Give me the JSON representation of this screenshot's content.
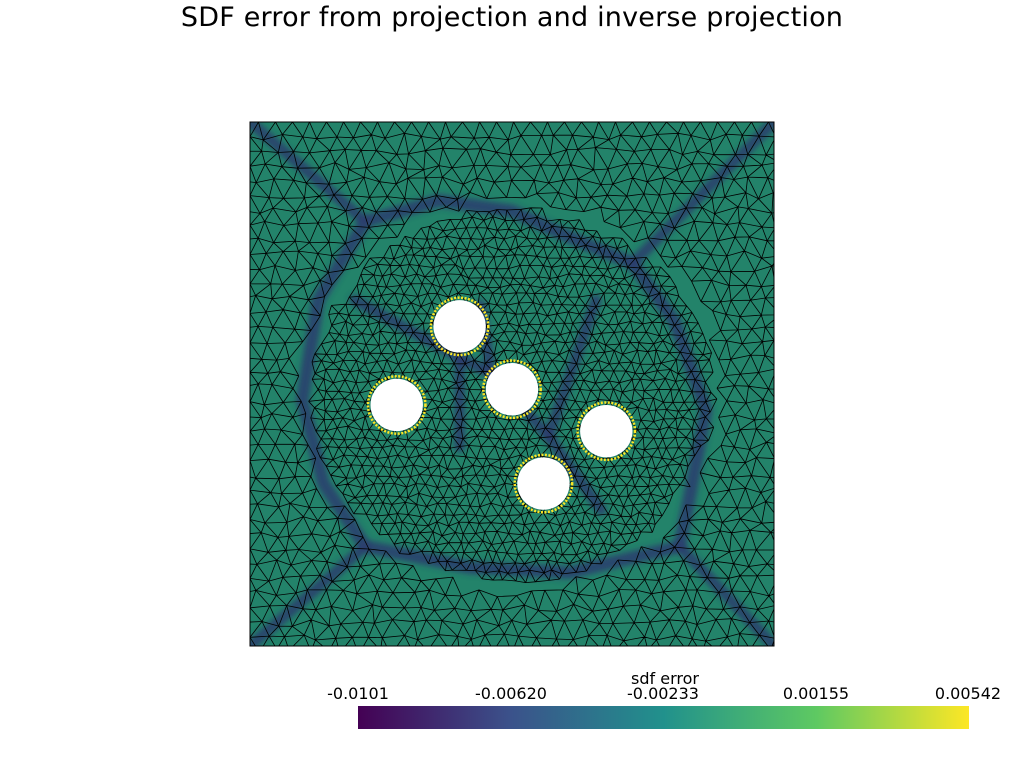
{
  "title": "SDF error from projection and inverse projection",
  "chart_data": {
    "type": "heatmap",
    "title": "SDF error from projection and inverse projection",
    "colorbar": {
      "label": "sdf error",
      "range": [
        -0.0101,
        0.00542
      ],
      "tick_labels": [
        "-0.0101",
        "-0.00620",
        "-0.00233",
        "0.00155",
        "0.00542"
      ],
      "tick_values": [
        -0.0101,
        -0.0062,
        -0.00233,
        0.00155,
        0.00542
      ],
      "colormap": "viridis",
      "colormap_stops": [
        "#440154",
        "#3b528b",
        "#21918c",
        "#5ec962",
        "#fde725"
      ]
    },
    "mesh": {
      "element": "triangle",
      "edge_color": "#000000",
      "dominant_value": 0.00155,
      "dominant_color": "#23836a"
    },
    "holes": [
      {
        "x": 0.4,
        "y": 0.61
      },
      {
        "x": 0.28,
        "y": 0.46
      },
      {
        "x": 0.5,
        "y": 0.49
      },
      {
        "x": 0.68,
        "y": 0.41
      },
      {
        "x": 0.56,
        "y": 0.31
      }
    ],
    "hole_radius": 0.05,
    "boundary_color": "#fde725",
    "low_error_bands": [
      {
        "from": [
          0.0,
          1.0
        ],
        "to": [
          0.22,
          0.81
        ]
      },
      {
        "from": [
          1.0,
          1.0
        ],
        "to": [
          0.73,
          0.73
        ]
      },
      {
        "from": [
          0.0,
          0.0
        ],
        "to": [
          0.22,
          0.19
        ]
      },
      {
        "from": [
          1.0,
          0.0
        ],
        "to": [
          0.82,
          0.19
        ]
      },
      {
        "from": [
          0.4,
          0.55
        ],
        "to": [
          0.2,
          0.66
        ]
      },
      {
        "from": [
          0.4,
          0.55
        ],
        "to": [
          0.4,
          0.38
        ]
      },
      {
        "from": [
          0.4,
          0.55
        ],
        "to": [
          0.46,
          0.52
        ]
      },
      {
        "from": [
          0.46,
          0.52
        ],
        "to": [
          0.57,
          0.4
        ]
      },
      {
        "from": [
          0.57,
          0.4
        ],
        "to": [
          0.67,
          0.26
        ]
      },
      {
        "from": [
          0.57,
          0.4
        ],
        "to": [
          0.66,
          0.66
        ]
      },
      {
        "from": [
          0.46,
          0.52
        ],
        "to": [
          0.44,
          0.65
        ]
      }
    ],
    "low_error_ring": [
      [
        0.22,
        0.81
      ],
      [
        0.36,
        0.85
      ],
      [
        0.5,
        0.83
      ],
      [
        0.61,
        0.78
      ],
      [
        0.73,
        0.73
      ],
      [
        0.81,
        0.62
      ],
      [
        0.87,
        0.45
      ],
      [
        0.84,
        0.29
      ],
      [
        0.82,
        0.19
      ],
      [
        0.61,
        0.14
      ],
      [
        0.42,
        0.15
      ],
      [
        0.22,
        0.19
      ],
      [
        0.14,
        0.31
      ],
      [
        0.1,
        0.47
      ],
      [
        0.13,
        0.66
      ]
    ],
    "band_color": "#2c3c6e"
  }
}
